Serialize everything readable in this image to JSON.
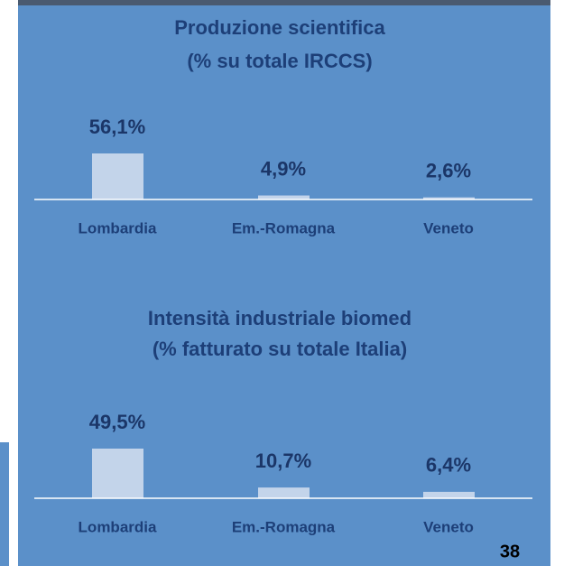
{
  "chart_data": [
    {
      "type": "bar",
      "title": "Produzione scientifica",
      "subtitle": "(% su totale IRCCS)",
      "categories": [
        "Lombardia",
        "Em.-Romagna",
        "Veneto"
      ],
      "values": [
        56.1,
        4.9,
        2.6
      ],
      "value_labels": [
        "56,1%",
        "4,9%",
        "2,6%"
      ],
      "color": "#c3d4ea"
    },
    {
      "type": "bar",
      "title": "Intensità industriale biomed",
      "subtitle": "(% fatturato su totale Italia)",
      "categories": [
        "Lombardia",
        "Em.-Romagna",
        "Veneto"
      ],
      "values": [
        49.5,
        10.7,
        6.4
      ],
      "value_labels": [
        "49,5%",
        "10,7%",
        "6,4%"
      ],
      "color": "#c3d4ea"
    }
  ],
  "page_number": "38"
}
